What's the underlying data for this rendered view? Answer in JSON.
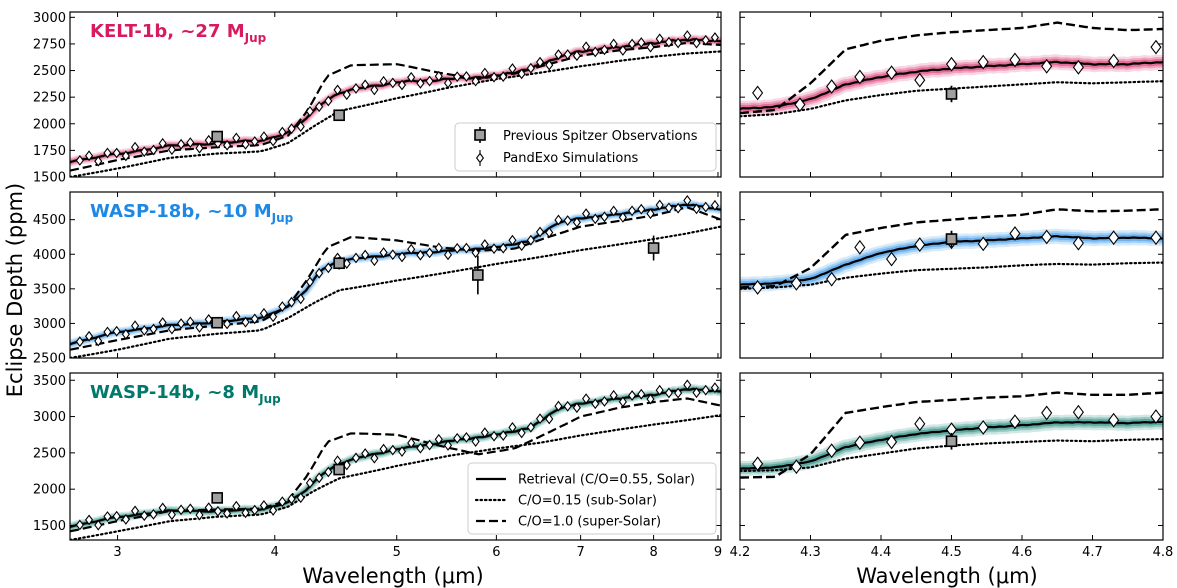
{
  "figure": {
    "ylabel": "Eclipse Depth (ppm)",
    "xlabel_left": "Wavelength (μm)",
    "xlabel_right": "Wavelength (μm)"
  },
  "legend_top": [
    "Previous Spitzer Observations",
    "PandExo Simulations"
  ],
  "legend_bottom": [
    "Retrieval (C/O=0.55, Solar)",
    "C/O=0.15 (sub-Solar)",
    "C/O=1.0 (super-Solar)"
  ],
  "panel_labels": [
    {
      "name": "KELT-1b, ~27",
      "mass_unit": "M",
      "mass_sub": "Jup"
    },
    {
      "name": "WASP-18b, ~10",
      "mass_unit": "M",
      "mass_sub": "Jup"
    },
    {
      "name": "WASP-14b, ~8",
      "mass_unit": "M",
      "mass_sub": "Jup"
    }
  ],
  "chart_data": [
    {
      "type": "line",
      "planet": "KELT-1b",
      "color": "#d81b60",
      "xlabel": "Wavelength (μm)",
      "ylabel": "Eclipse Depth (ppm)",
      "xscale": "log",
      "xlim": [
        2.75,
        9.05
      ],
      "xrange_zoom": [
        4.2,
        4.8
      ],
      "ylim": [
        1500,
        3050
      ],
      "yticks": [
        1500,
        1750,
        2000,
        2250,
        2500,
        2750,
        3000
      ],
      "legend_position": "lower-right",
      "series": [
        {
          "name": "Retrieval (C/O=0.55, Solar)",
          "style": "solid",
          "x": [
            2.75,
            3.0,
            3.3,
            3.6,
            3.9,
            4.1,
            4.25,
            4.35,
            4.5,
            4.7,
            5.0,
            5.5,
            6.0,
            6.4,
            6.7,
            7.0,
            7.5,
            8.0,
            8.5,
            9.05
          ],
          "y": [
            1640,
            1720,
            1790,
            1820,
            1840,
            1920,
            2060,
            2190,
            2290,
            2340,
            2390,
            2420,
            2450,
            2520,
            2620,
            2680,
            2720,
            2760,
            2790,
            2780
          ]
        },
        {
          "name": "C/O=0.15 (sub-Solar)",
          "style": "dotted",
          "x": [
            2.75,
            3.0,
            3.3,
            3.6,
            3.9,
            4.1,
            4.3,
            4.5,
            5.0,
            5.5,
            6.0,
            6.5,
            7.0,
            7.5,
            8.0,
            8.5,
            9.05
          ],
          "y": [
            1500,
            1580,
            1680,
            1720,
            1740,
            1820,
            1980,
            2120,
            2240,
            2340,
            2420,
            2480,
            2540,
            2590,
            2630,
            2660,
            2680
          ]
        },
        {
          "name": "C/O=1.0 (super-Solar)",
          "style": "dashed",
          "x": [
            2.75,
            3.0,
            3.3,
            3.6,
            3.9,
            4.1,
            4.25,
            4.4,
            4.6,
            5.0,
            5.4,
            5.8,
            6.2,
            6.6,
            7.0,
            7.5,
            8.0,
            8.5,
            9.05
          ],
          "y": [
            1560,
            1660,
            1750,
            1780,
            1800,
            1890,
            2130,
            2450,
            2550,
            2560,
            2480,
            2420,
            2470,
            2560,
            2640,
            2690,
            2720,
            2760,
            2740
          ]
        }
      ],
      "spitzer": {
        "x": [
          3.6,
          4.5
        ],
        "y": [
          1880,
          2080
        ],
        "err": [
          40,
          40
        ]
      },
      "pandexo_count": 70
    },
    {
      "type": "line",
      "planet": "WASP-18b",
      "color": "#1e88e5",
      "xlabel": "Wavelength (μm)",
      "ylabel": "Eclipse Depth (ppm)",
      "xscale": "log",
      "xlim": [
        2.75,
        9.05
      ],
      "xrange_zoom": [
        4.2,
        4.8
      ],
      "ylim": [
        2500,
        4900
      ],
      "yticks": [
        2500,
        3000,
        3500,
        4000,
        4500
      ],
      "series": [
        {
          "name": "Retrieval (C/O=0.55, Solar)",
          "style": "solid",
          "x": [
            2.75,
            3.0,
            3.3,
            3.6,
            3.9,
            4.1,
            4.25,
            4.35,
            4.5,
            4.7,
            5.0,
            5.5,
            6.0,
            6.4,
            6.7,
            7.0,
            7.5,
            8.0,
            8.5,
            9.05
          ],
          "y": [
            2700,
            2880,
            2970,
            3020,
            3080,
            3250,
            3500,
            3780,
            3900,
            3950,
            4000,
            4050,
            4100,
            4200,
            4450,
            4520,
            4580,
            4650,
            4720,
            4650
          ]
        },
        {
          "name": "C/O=0.15 (sub-Solar)",
          "style": "dotted",
          "x": [
            2.75,
            3.0,
            3.3,
            3.6,
            3.9,
            4.1,
            4.3,
            4.5,
            5.0,
            5.5,
            6.0,
            6.5,
            7.0,
            7.5,
            8.0,
            8.5,
            9.05
          ],
          "y": [
            2500,
            2620,
            2780,
            2850,
            2900,
            3080,
            3300,
            3480,
            3620,
            3740,
            3860,
            3960,
            4060,
            4140,
            4220,
            4300,
            4400
          ]
        },
        {
          "name": "C/O=1.0 (super-Solar)",
          "style": "dashed",
          "x": [
            2.75,
            3.0,
            3.3,
            3.6,
            3.9,
            4.1,
            4.25,
            4.4,
            4.6,
            5.0,
            5.4,
            5.8,
            6.2,
            6.6,
            7.0,
            7.5,
            8.0,
            8.5,
            9.05
          ],
          "y": [
            2620,
            2760,
            2900,
            2970,
            3030,
            3250,
            3650,
            4100,
            4250,
            4200,
            4100,
            4050,
            4080,
            4250,
            4400,
            4480,
            4560,
            4680,
            4500
          ]
        }
      ],
      "spitzer": {
        "x": [
          3.6,
          4.5,
          5.8,
          8.0
        ],
        "y": [
          3010,
          3870,
          3700,
          4090
        ],
        "err": [
          60,
          90,
          280,
          180
        ]
      },
      "pandexo_count": 70
    },
    {
      "type": "line",
      "planet": "WASP-14b",
      "color": "#00796b",
      "xlabel": "Wavelength (μm)",
      "ylabel": "Eclipse Depth (ppm)",
      "xscale": "log",
      "xlim": [
        2.75,
        9.05
      ],
      "xrange_zoom": [
        4.2,
        4.8
      ],
      "ylim": [
        1300,
        3600
      ],
      "yticks": [
        1500,
        2000,
        2500,
        3000,
        3500
      ],
      "legend_position": "lower-right",
      "series": [
        {
          "name": "Retrieval (C/O=0.55, Solar)",
          "style": "solid",
          "x": [
            2.75,
            3.0,
            3.3,
            3.6,
            3.9,
            4.1,
            4.25,
            4.35,
            4.5,
            4.7,
            5.0,
            5.5,
            6.0,
            6.4,
            6.7,
            7.0,
            7.5,
            8.0,
            8.5,
            9.05
          ],
          "y": [
            1480,
            1620,
            1700,
            1700,
            1720,
            1820,
            2000,
            2200,
            2350,
            2450,
            2550,
            2660,
            2750,
            2850,
            3100,
            3180,
            3250,
            3300,
            3380,
            3350
          ]
        },
        {
          "name": "C/O=0.15 (sub-Solar)",
          "style": "dotted",
          "x": [
            2.75,
            3.0,
            3.3,
            3.6,
            3.9,
            4.1,
            4.3,
            4.5,
            5.0,
            5.5,
            6.0,
            6.5,
            7.0,
            7.5,
            8.0,
            8.5,
            9.05
          ],
          "y": [
            1300,
            1420,
            1560,
            1620,
            1650,
            1760,
            1980,
            2150,
            2320,
            2460,
            2560,
            2640,
            2740,
            2820,
            2890,
            2950,
            3020
          ]
        },
        {
          "name": "C/O=1.0 (super-Solar)",
          "style": "dashed",
          "x": [
            2.75,
            3.0,
            3.3,
            3.6,
            3.9,
            4.1,
            4.25,
            4.4,
            4.6,
            5.0,
            5.4,
            5.8,
            6.2,
            6.6,
            7.0,
            7.5,
            8.0,
            8.5,
            9.05
          ],
          "y": [
            1420,
            1560,
            1700,
            1720,
            1730,
            1850,
            2200,
            2650,
            2770,
            2750,
            2600,
            2480,
            2560,
            2780,
            3000,
            3120,
            3200,
            3250,
            3150
          ]
        }
      ],
      "spitzer": {
        "x": [
          3.6,
          4.5
        ],
        "y": [
          1880,
          2270
        ],
        "err": [
          30,
          60
        ]
      },
      "pandexo_count": 70
    }
  ],
  "zoom_data": [
    {
      "planet": "KELT-1b",
      "xlim": [
        4.2,
        4.8
      ],
      "retrieval": {
        "x": [
          4.2,
          4.25,
          4.3,
          4.35,
          4.4,
          4.45,
          4.5,
          4.55,
          4.6,
          4.65,
          4.7,
          4.75,
          4.8
        ],
        "y": [
          2140,
          2160,
          2230,
          2370,
          2440,
          2490,
          2520,
          2540,
          2560,
          2580,
          2560,
          2560,
          2580
        ]
      },
      "sub": {
        "x": [
          4.2,
          4.25,
          4.3,
          4.35,
          4.4,
          4.45,
          4.5,
          4.55,
          4.6,
          4.65,
          4.7,
          4.75,
          4.8
        ],
        "y": [
          2070,
          2090,
          2140,
          2220,
          2270,
          2310,
          2330,
          2350,
          2370,
          2390,
          2380,
          2390,
          2400
        ]
      },
      "super": {
        "x": [
          4.2,
          4.25,
          4.3,
          4.35,
          4.4,
          4.45,
          4.5,
          4.55,
          4.6,
          4.65,
          4.7,
          4.75,
          4.8
        ],
        "y": [
          2100,
          2130,
          2380,
          2700,
          2780,
          2830,
          2860,
          2880,
          2900,
          2950,
          2900,
          2880,
          2890
        ]
      },
      "pandexo": {
        "x": [
          4.225,
          4.285,
          4.33,
          4.37,
          4.415,
          4.455,
          4.5,
          4.545,
          4.59,
          4.635,
          4.68,
          4.73,
          4.79
        ],
        "y": [
          2290,
          2180,
          2350,
          2440,
          2480,
          2410,
          2560,
          2580,
          2600,
          2540,
          2530,
          2590,
          2720
        ]
      },
      "spitzer": {
        "x": [
          4.5
        ],
        "y": [
          2280
        ]
      }
    },
    {
      "planet": "WASP-18b",
      "xlim": [
        4.2,
        4.8
      ],
      "retrieval": {
        "x": [
          4.2,
          4.25,
          4.3,
          4.35,
          4.4,
          4.45,
          4.5,
          4.55,
          4.6,
          4.65,
          4.7,
          4.75,
          4.8
        ],
        "y": [
          3560,
          3580,
          3640,
          3850,
          4020,
          4120,
          4180,
          4200,
          4230,
          4260,
          4230,
          4240,
          4230
        ]
      },
      "sub": {
        "x": [
          4.2,
          4.25,
          4.3,
          4.35,
          4.4,
          4.45,
          4.5,
          4.55,
          4.6,
          4.65,
          4.7,
          4.75,
          4.8
        ],
        "y": [
          3500,
          3520,
          3560,
          3660,
          3720,
          3770,
          3790,
          3810,
          3840,
          3860,
          3850,
          3870,
          3880
        ]
      },
      "super": {
        "x": [
          4.2,
          4.25,
          4.3,
          4.35,
          4.4,
          4.45,
          4.5,
          4.55,
          4.6,
          4.65,
          4.7,
          4.75,
          4.8
        ],
        "y": [
          3520,
          3540,
          3800,
          4280,
          4380,
          4460,
          4500,
          4540,
          4570,
          4650,
          4620,
          4630,
          4650
        ]
      },
      "pandexo": {
        "x": [
          4.225,
          4.28,
          4.33,
          4.37,
          4.415,
          4.455,
          4.5,
          4.545,
          4.59,
          4.635,
          4.68,
          4.73,
          4.79
        ],
        "y": [
          3520,
          3580,
          3640,
          4100,
          3930,
          4140,
          4180,
          4150,
          4300,
          4250,
          4160,
          4240,
          4240
        ]
      },
      "spitzer": {
        "x": [
          4.5
        ],
        "y": [
          4220
        ]
      }
    },
    {
      "planet": "WASP-14b",
      "xlim": [
        4.2,
        4.8
      ],
      "retrieval": {
        "x": [
          4.2,
          4.25,
          4.3,
          4.35,
          4.4,
          4.45,
          4.5,
          4.55,
          4.6,
          4.65,
          4.7,
          4.75,
          4.8
        ],
        "y": [
          2280,
          2300,
          2380,
          2580,
          2680,
          2760,
          2810,
          2850,
          2880,
          2920,
          2920,
          2910,
          2930
        ]
      },
      "sub": {
        "x": [
          4.2,
          4.25,
          4.3,
          4.35,
          4.4,
          4.45,
          4.5,
          4.55,
          4.6,
          4.65,
          4.7,
          4.75,
          4.8
        ],
        "y": [
          2250,
          2260,
          2300,
          2420,
          2490,
          2560,
          2600,
          2630,
          2650,
          2670,
          2660,
          2680,
          2690
        ]
      },
      "super": {
        "x": [
          4.2,
          4.25,
          4.3,
          4.35,
          4.4,
          4.45,
          4.5,
          4.55,
          4.6,
          4.65,
          4.7,
          4.75,
          4.8
        ],
        "y": [
          2160,
          2170,
          2480,
          3050,
          3130,
          3200,
          3230,
          3260,
          3280,
          3330,
          3300,
          3300,
          3330
        ]
      },
      "pandexo": {
        "x": [
          4.225,
          4.28,
          4.33,
          4.37,
          4.415,
          4.455,
          4.5,
          4.545,
          4.59,
          4.635,
          4.68,
          4.73,
          4.79
        ],
        "y": [
          2350,
          2310,
          2530,
          2640,
          2650,
          2900,
          2820,
          2850,
          2930,
          3050,
          3060,
          2950,
          3000
        ]
      },
      "spitzer": {
        "x": [
          4.5
        ],
        "y": [
          2660
        ]
      }
    }
  ]
}
